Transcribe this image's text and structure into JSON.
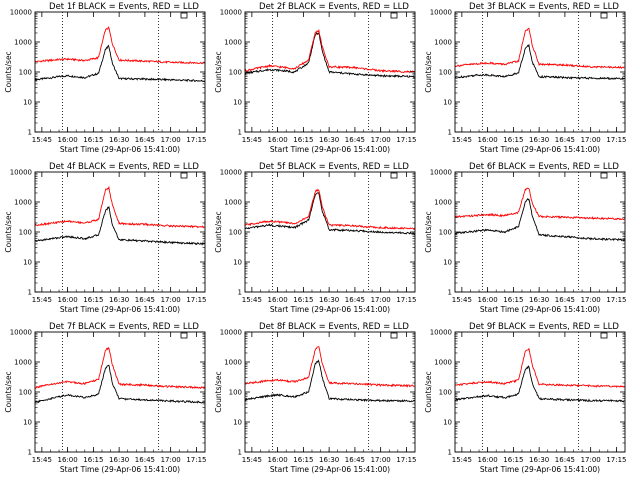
{
  "figure": {
    "background": "#ffffff",
    "colors": {
      "events": "#000000",
      "lld": "#ff0000",
      "axes": "#000000"
    }
  },
  "chart_data": [
    {
      "type": "line",
      "title": "Det 1f BLACK = Events, RED = LLD",
      "xlabel": "Start Time (29-Apr-06 15:41:00)",
      "ylabel": "Counts/sec",
      "y_scale": "log",
      "ylim": [
        1,
        10000
      ],
      "xlim": [
        "15:41",
        "17:20"
      ],
      "x_ticks": [
        "15:45",
        "16:00",
        "16:15",
        "16:30",
        "16:45",
        "17:00",
        "17:15"
      ],
      "y_ticks": [
        "1",
        "10",
        "100",
        "1000",
        "10000"
      ],
      "vlines": [
        "15:57",
        "16:53"
      ],
      "grid": false,
      "legend": "none (described in title)",
      "series": [
        {
          "name": "Events",
          "color": "#000000",
          "x": [
            "15:41",
            "15:55",
            "16:00",
            "16:10",
            "16:18",
            "16:22",
            "16:24",
            "16:26",
            "16:30",
            "16:45",
            "17:00",
            "17:20"
          ],
          "y": [
            55,
            70,
            75,
            65,
            90,
            550,
            750,
            200,
            60,
            58,
            55,
            50
          ]
        },
        {
          "name": "LLD",
          "color": "#ff0000",
          "x": [
            "15:41",
            "15:55",
            "16:00",
            "16:10",
            "16:18",
            "16:22",
            "16:24",
            "16:26",
            "16:30",
            "16:45",
            "17:00",
            "17:20"
          ],
          "y": [
            220,
            260,
            270,
            240,
            300,
            2500,
            3000,
            900,
            250,
            230,
            210,
            200
          ]
        }
      ]
    },
    {
      "type": "line",
      "title": "Det 2f BLACK = Events, RED = LLD",
      "xlabel": "Start Time (29-Apr-06 15:41:00)",
      "ylabel": "Counts/sec",
      "y_scale": "log",
      "ylim": [
        1,
        10000
      ],
      "xlim": [
        "15:41",
        "17:20"
      ],
      "x_ticks": [
        "15:45",
        "16:00",
        "16:15",
        "16:30",
        "16:45",
        "17:00",
        "17:15"
      ],
      "y_ticks": [
        "1",
        "10",
        "100",
        "1000",
        "10000"
      ],
      "vlines": [
        "15:57",
        "16:53"
      ],
      "grid": false,
      "legend": "none (described in title)",
      "series": [
        {
          "name": "Events",
          "color": "#000000",
          "x": [
            "15:41",
            "15:55",
            "16:00",
            "16:10",
            "16:18",
            "16:22",
            "16:24",
            "16:26",
            "16:30",
            "16:45",
            "17:00",
            "17:20"
          ],
          "y": [
            90,
            120,
            115,
            100,
            200,
            1800,
            2000,
            500,
            100,
            85,
            75,
            70
          ]
        },
        {
          "name": "LLD",
          "color": "#ff0000",
          "x": [
            "15:41",
            "15:55",
            "16:00",
            "16:10",
            "16:18",
            "16:22",
            "16:24",
            "16:26",
            "16:30",
            "16:45",
            "17:00",
            "17:20"
          ],
          "y": [
            110,
            160,
            150,
            130,
            250,
            2100,
            2400,
            700,
            150,
            140,
            110,
            100
          ]
        }
      ]
    },
    {
      "type": "line",
      "title": "Det 3f BLACK = Events, RED = LLD",
      "xlabel": "Start Time (29-Apr-06 15:41:00)",
      "ylabel": "Counts/sec",
      "y_scale": "log",
      "ylim": [
        1,
        10000
      ],
      "xlim": [
        "15:41",
        "17:20"
      ],
      "x_ticks": [
        "15:45",
        "16:00",
        "16:15",
        "16:30",
        "16:45",
        "17:00",
        "17:15"
      ],
      "y_ticks": [
        "1",
        "10",
        "100",
        "1000",
        "10000"
      ],
      "vlines": [
        "15:57",
        "16:53"
      ],
      "grid": false,
      "legend": "none (described in title)",
      "series": [
        {
          "name": "Events",
          "color": "#000000",
          "x": [
            "15:41",
            "15:55",
            "16:00",
            "16:10",
            "16:18",
            "16:22",
            "16:24",
            "16:26",
            "16:30",
            "16:45",
            "17:00",
            "17:20"
          ],
          "y": [
            65,
            80,
            80,
            70,
            95,
            600,
            800,
            220,
            70,
            65,
            62,
            60
          ]
        },
        {
          "name": "LLD",
          "color": "#ff0000",
          "x": [
            "15:41",
            "15:55",
            "16:00",
            "16:10",
            "16:18",
            "16:22",
            "16:24",
            "16:26",
            "16:30",
            "16:45",
            "17:00",
            "17:20"
          ],
          "y": [
            160,
            190,
            200,
            180,
            230,
            2400,
            2800,
            800,
            180,
            170,
            150,
            140
          ]
        }
      ]
    },
    {
      "type": "line",
      "title": "Det 4f BLACK = Events, RED = LLD",
      "xlabel": "Start Time (29-Apr-06 15:41:00)",
      "ylabel": "Counts/sec",
      "y_scale": "log",
      "ylim": [
        1,
        10000
      ],
      "xlim": [
        "15:41",
        "17:20"
      ],
      "x_ticks": [
        "15:45",
        "16:00",
        "16:15",
        "16:30",
        "16:45",
        "17:00",
        "17:15"
      ],
      "y_ticks": [
        "1",
        "10",
        "100",
        "1000",
        "10000"
      ],
      "vlines": [
        "15:57",
        "16:53"
      ],
      "grid": false,
      "legend": "none (described in title)",
      "series": [
        {
          "name": "Events",
          "color": "#000000",
          "x": [
            "15:41",
            "15:55",
            "16:00",
            "16:10",
            "16:18",
            "16:22",
            "16:24",
            "16:26",
            "16:30",
            "16:45",
            "17:00",
            "17:20"
          ],
          "y": [
            50,
            65,
            70,
            60,
            80,
            500,
            700,
            180,
            55,
            50,
            45,
            40
          ]
        },
        {
          "name": "LLD",
          "color": "#ff0000",
          "x": [
            "15:41",
            "15:55",
            "16:00",
            "16:10",
            "16:18",
            "16:22",
            "16:24",
            "16:26",
            "16:30",
            "16:45",
            "17:00",
            "17:20"
          ],
          "y": [
            170,
            210,
            230,
            200,
            260,
            2500,
            3000,
            850,
            190,
            180,
            160,
            150
          ]
        }
      ]
    },
    {
      "type": "line",
      "title": "Det 5f BLACK = Events, RED = LLD",
      "xlabel": "Start Time (29-Apr-06 15:41:00)",
      "ylabel": "Counts/sec",
      "y_scale": "log",
      "ylim": [
        1,
        10000
      ],
      "xlim": [
        "15:41",
        "17:20"
      ],
      "x_ticks": [
        "15:45",
        "16:00",
        "16:15",
        "16:30",
        "16:45",
        "17:00",
        "17:15"
      ],
      "y_ticks": [
        "1",
        "10",
        "100",
        "1000",
        "10000"
      ],
      "vlines": [
        "15:57",
        "16:53"
      ],
      "grid": false,
      "legend": "none (described in title)",
      "series": [
        {
          "name": "Events",
          "color": "#000000",
          "x": [
            "15:41",
            "15:55",
            "16:00",
            "16:10",
            "16:18",
            "16:22",
            "16:24",
            "16:26",
            "16:30",
            "16:45",
            "17:00",
            "17:20"
          ],
          "y": [
            130,
            170,
            160,
            140,
            250,
            1800,
            2000,
            500,
            120,
            110,
            100,
            90
          ]
        },
        {
          "name": "LLD",
          "color": "#ff0000",
          "x": [
            "15:41",
            "15:55",
            "16:00",
            "16:10",
            "16:18",
            "16:22",
            "16:24",
            "16:26",
            "16:30",
            "16:45",
            "17:00",
            "17:20"
          ],
          "y": [
            170,
            230,
            220,
            190,
            320,
            2300,
            2600,
            700,
            170,
            160,
            140,
            130
          ]
        }
      ]
    },
    {
      "type": "line",
      "title": "Det 6f BLACK = Events, RED = LLD",
      "xlabel": "Start Time (29-Apr-06 15:41:00)",
      "ylabel": "Counts/sec",
      "y_scale": "log",
      "ylim": [
        1,
        10000
      ],
      "xlim": [
        "15:41",
        "17:20"
      ],
      "x_ticks": [
        "15:45",
        "16:00",
        "16:15",
        "16:30",
        "16:45",
        "17:00",
        "17:15"
      ],
      "y_ticks": [
        "1",
        "10",
        "100",
        "1000",
        "10000"
      ],
      "vlines": [
        "15:57",
        "16:53"
      ],
      "grid": false,
      "legend": "none (described in title)",
      "series": [
        {
          "name": "Events",
          "color": "#000000",
          "x": [
            "15:41",
            "15:55",
            "16:00",
            "16:10",
            "16:18",
            "16:22",
            "16:24",
            "16:26",
            "16:30",
            "16:45",
            "17:00",
            "17:20"
          ],
          "y": [
            90,
            110,
            115,
            100,
            150,
            1000,
            1300,
            350,
            80,
            70,
            60,
            55
          ]
        },
        {
          "name": "LLD",
          "color": "#ff0000",
          "x": [
            "15:41",
            "15:55",
            "16:00",
            "16:10",
            "16:18",
            "16:22",
            "16:24",
            "16:26",
            "16:30",
            "16:45",
            "17:00",
            "17:20"
          ],
          "y": [
            320,
            360,
            380,
            350,
            450,
            2600,
            3000,
            900,
            330,
            310,
            290,
            270
          ]
        }
      ]
    },
    {
      "type": "line",
      "title": "Det 7f BLACK = Events, RED = LLD",
      "xlabel": "Start Time (29-Apr-06 15:41:00)",
      "ylabel": "Counts/sec",
      "y_scale": "log",
      "ylim": [
        1,
        10000
      ],
      "xlim": [
        "15:41",
        "17:20"
      ],
      "x_ticks": [
        "15:45",
        "16:00",
        "16:15",
        "16:30",
        "16:45",
        "17:00",
        "17:15"
      ],
      "y_ticks": [
        "1",
        "10",
        "100",
        "1000",
        "10000"
      ],
      "vlines": [
        "15:57",
        "16:53"
      ],
      "grid": false,
      "legend": "none (described in title)",
      "series": [
        {
          "name": "Events",
          "color": "#000000",
          "x": [
            "15:41",
            "15:55",
            "16:00",
            "16:10",
            "16:18",
            "16:22",
            "16:24",
            "16:26",
            "16:30",
            "16:45",
            "17:00",
            "17:20"
          ],
          "y": [
            45,
            70,
            80,
            65,
            85,
            600,
            800,
            200,
            60,
            55,
            50,
            45
          ]
        },
        {
          "name": "LLD",
          "color": "#ff0000",
          "x": [
            "15:41",
            "15:55",
            "16:00",
            "16:10",
            "16:18",
            "16:22",
            "16:24",
            "16:26",
            "16:30",
            "16:45",
            "17:00",
            "17:20"
          ],
          "y": [
            140,
            200,
            220,
            190,
            260,
            2400,
            3000,
            850,
            180,
            170,
            150,
            140
          ]
        }
      ]
    },
    {
      "type": "line",
      "title": "Det 8f BLACK = Events, RED = LLD",
      "xlabel": "Start Time (29-Apr-06 15:41:00)",
      "ylabel": "Counts/sec",
      "y_scale": "log",
      "ylim": [
        1,
        10000
      ],
      "xlim": [
        "15:41",
        "17:20"
      ],
      "x_ticks": [
        "15:45",
        "16:00",
        "16:15",
        "16:30",
        "16:45",
        "17:00",
        "17:15"
      ],
      "y_ticks": [
        "1",
        "10",
        "100",
        "1000",
        "10000"
      ],
      "vlines": [
        "15:57",
        "16:53"
      ],
      "grid": false,
      "legend": "none (described in title)",
      "series": [
        {
          "name": "Events",
          "color": "#000000",
          "x": [
            "15:41",
            "15:55",
            "16:00",
            "16:10",
            "16:18",
            "16:22",
            "16:24",
            "16:26",
            "16:30",
            "16:45",
            "17:00",
            "17:20"
          ],
          "y": [
            55,
            75,
            80,
            70,
            100,
            900,
            1100,
            300,
            60,
            55,
            52,
            50
          ]
        },
        {
          "name": "LLD",
          "color": "#ff0000",
          "x": [
            "15:41",
            "15:55",
            "16:00",
            "16:10",
            "16:18",
            "16:22",
            "16:24",
            "16:26",
            "16:30",
            "16:45",
            "17:00",
            "17:20"
          ],
          "y": [
            190,
            240,
            250,
            220,
            300,
            2700,
            3200,
            900,
            200,
            190,
            170,
            160
          ]
        }
      ]
    },
    {
      "type": "line",
      "title": "Det 9f BLACK = Events, RED = LLD",
      "xlabel": "Start Time (29-Apr-06 15:41:00)",
      "ylabel": "Counts/sec",
      "y_scale": "log",
      "ylim": [
        1,
        10000
      ],
      "xlim": [
        "15:41",
        "17:20"
      ],
      "x_ticks": [
        "15:45",
        "16:00",
        "16:15",
        "16:30",
        "16:45",
        "17:00",
        "17:15"
      ],
      "y_ticks": [
        "1",
        "10",
        "100",
        "1000",
        "10000"
      ],
      "vlines": [
        "15:57",
        "16:53"
      ],
      "grid": false,
      "legend": "none (described in title)",
      "series": [
        {
          "name": "Events",
          "color": "#000000",
          "x": [
            "15:41",
            "15:55",
            "16:00",
            "16:10",
            "16:18",
            "16:22",
            "16:24",
            "16:26",
            "16:30",
            "16:45",
            "17:00",
            "17:20"
          ],
          "y": [
            55,
            70,
            75,
            65,
            85,
            600,
            700,
            200,
            60,
            55,
            52,
            50
          ]
        },
        {
          "name": "LLD",
          "color": "#ff0000",
          "x": [
            "15:41",
            "15:55",
            "16:00",
            "16:10",
            "16:18",
            "16:22",
            "16:24",
            "16:26",
            "16:30",
            "16:45",
            "17:00",
            "17:20"
          ],
          "y": [
            170,
            210,
            220,
            190,
            250,
            2300,
            2800,
            800,
            180,
            170,
            160,
            150
          ]
        }
      ]
    }
  ]
}
